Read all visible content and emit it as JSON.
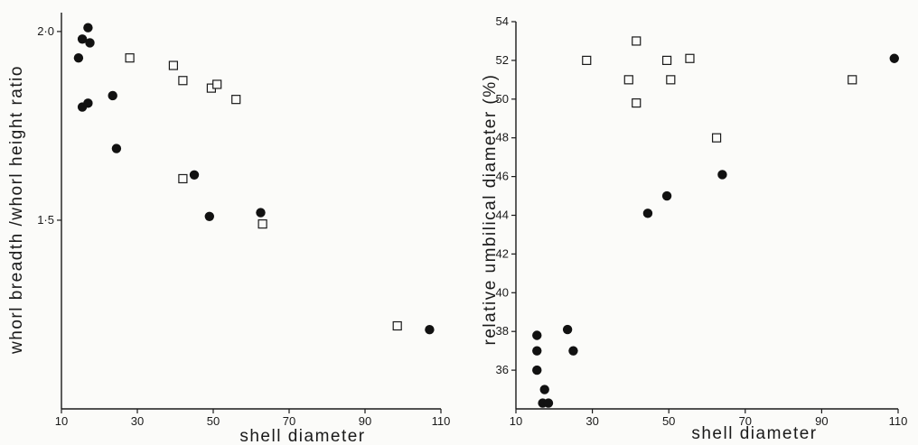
{
  "chart_data": [
    {
      "type": "scatter",
      "title": "",
      "xlabel": "shell diameter",
      "ylabel": "whorl breadth /whorl height ratio",
      "xlim": [
        10,
        110
      ],
      "ylim": [
        1.0,
        2.05
      ],
      "x_ticks": [
        10,
        30,
        50,
        70,
        90,
        110
      ],
      "y_ticks": [
        1.5,
        2.0
      ],
      "y_tick_labels": [
        "1·5",
        "2·0"
      ],
      "grid": false,
      "legend": "none",
      "series": [
        {
          "marker": "filled-circle",
          "x": [
            14.5,
            15.5,
            17,
            17.5,
            15.5,
            17,
            23.5,
            24.5,
            45,
            49,
            62.5,
            107
          ],
          "y": [
            1.93,
            1.98,
            2.01,
            1.97,
            1.8,
            1.81,
            1.83,
            1.69,
            1.62,
            1.51,
            1.52,
            1.21
          ]
        },
        {
          "marker": "open-square",
          "x": [
            28,
            39.5,
            42,
            42,
            49.5,
            51,
            56,
            63,
            98.5
          ],
          "y": [
            1.93,
            1.91,
            1.87,
            1.61,
            1.85,
            1.86,
            1.82,
            1.49,
            1.22
          ]
        }
      ]
    },
    {
      "type": "scatter",
      "title": "",
      "xlabel": "shell diameter",
      "ylabel": "relative umbilical diameter (%)",
      "xlim": [
        10,
        110
      ],
      "ylim": [
        34,
        54
      ],
      "x_ticks": [
        10,
        30,
        50,
        70,
        90,
        110
      ],
      "y_ticks": [
        36,
        38,
        40,
        42,
        44,
        46,
        48,
        50,
        52,
        54
      ],
      "grid": false,
      "legend": "none",
      "series": [
        {
          "marker": "filled-circle",
          "x": [
            15.5,
            15.5,
            15.5,
            17,
            17.5,
            18.5,
            23.5,
            25,
            44.5,
            49.5,
            64,
            109
          ],
          "y": [
            37.8,
            37.0,
            36.0,
            34.3,
            35.0,
            34.3,
            38.1,
            37.0,
            44.1,
            45.0,
            46.1,
            52.1
          ]
        },
        {
          "marker": "open-square",
          "x": [
            28.5,
            39.5,
            41.5,
            41.5,
            49.5,
            50.5,
            55.5,
            62.5,
            98
          ],
          "y": [
            52.0,
            51.0,
            53.0,
            49.8,
            52.0,
            51.0,
            52.1,
            48.0,
            51.0
          ]
        }
      ]
    }
  ]
}
